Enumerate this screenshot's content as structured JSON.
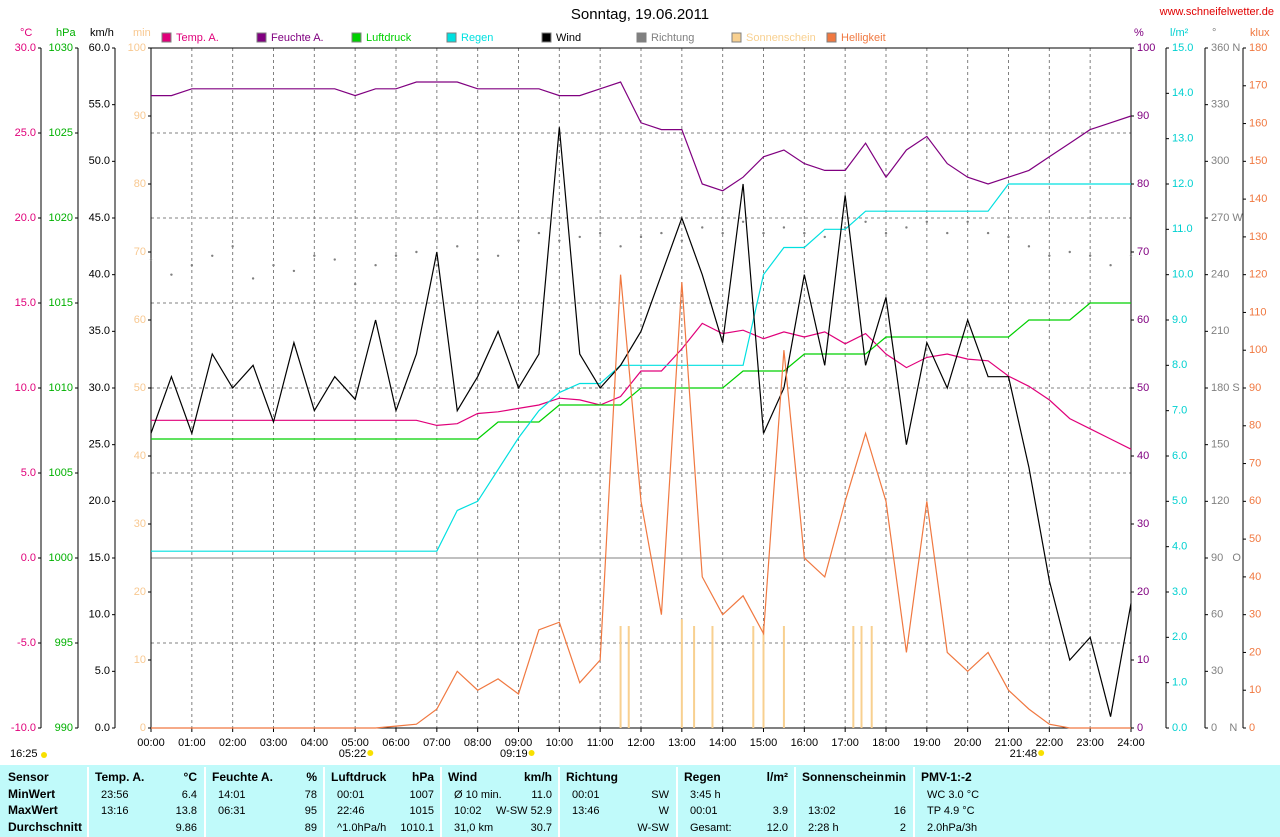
{
  "chart_data": {
    "type": "line",
    "title": "Sonntag, 19.06.2011",
    "subtitle": "www.schneifelwetter.de",
    "xlim": [
      0,
      24
    ],
    "xticks": [
      {
        "value": 0,
        "label": "00:00"
      },
      {
        "value": 1,
        "label": "01:00"
      },
      {
        "value": 2,
        "label": "02:00"
      },
      {
        "value": 3,
        "label": "03:00"
      },
      {
        "value": 4,
        "label": "04:00"
      },
      {
        "value": 5,
        "label": "05:00"
      },
      {
        "value": 6,
        "label": "06:00"
      },
      {
        "value": 7,
        "label": "07:00"
      },
      {
        "value": 8,
        "label": "08:00"
      },
      {
        "value": 9,
        "label": "09:00"
      },
      {
        "value": 10,
        "label": "10:00"
      },
      {
        "value": 11,
        "label": "11:00"
      },
      {
        "value": 12,
        "label": "12:00"
      },
      {
        "value": 13,
        "label": "13:00"
      },
      {
        "value": 14,
        "label": "14:00"
      },
      {
        "value": 15,
        "label": "15:00"
      },
      {
        "value": 16,
        "label": "16:00"
      },
      {
        "value": 17,
        "label": "17:00"
      },
      {
        "value": 18,
        "label": "18:00"
      },
      {
        "value": 19,
        "label": "19:00"
      },
      {
        "value": 20,
        "label": "20:00"
      },
      {
        "value": 21,
        "label": "21:00"
      },
      {
        "value": 22,
        "label": "22:00"
      },
      {
        "value": 23,
        "label": "23:00"
      },
      {
        "value": 24,
        "label": "24:00"
      }
    ],
    "grid": true,
    "axes": {
      "temp": {
        "label": "°C",
        "color": "#e0007a",
        "side": "left",
        "lim": [
          -10,
          30
        ],
        "ticks": [
          {
            "value": -10,
            "label": "-10.0"
          },
          {
            "value": -5,
            "label": "-5.0"
          },
          {
            "value": 0,
            "label": "0.0"
          },
          {
            "value": 5,
            "label": "5.0"
          },
          {
            "value": 10,
            "label": "10.0"
          },
          {
            "value": 15,
            "label": "15.0"
          },
          {
            "value": 20,
            "label": "20.0"
          },
          {
            "value": 25,
            "label": "25.0"
          },
          {
            "value": 30,
            "label": "30.0"
          }
        ]
      },
      "press": {
        "label": "hPa",
        "color": "#00b000",
        "side": "left",
        "lim": [
          990,
          1030
        ],
        "ticks": [
          990,
          995,
          1000,
          1005,
          1010,
          1015,
          1020,
          1025,
          1030
        ]
      },
      "wind": {
        "label": "km/h",
        "color": "#000000",
        "side": "left",
        "lim": [
          0,
          60
        ],
        "ticks": [
          {
            "value": 0,
            "label": "0.0"
          },
          {
            "value": 5,
            "label": "5.0"
          },
          {
            "value": 10,
            "label": "10.0"
          },
          {
            "value": 15,
            "label": "15.0"
          },
          {
            "value": 20,
            "label": "20.0"
          },
          {
            "value": 25,
            "label": "25.0"
          },
          {
            "value": 30,
            "label": "30.0"
          },
          {
            "value": 35,
            "label": "35.0"
          },
          {
            "value": 40,
            "label": "40.0"
          },
          {
            "value": 45,
            "label": "45.0"
          },
          {
            "value": 50,
            "label": "50.0"
          },
          {
            "value": 55,
            "label": "55.0"
          },
          {
            "value": 60,
            "label": "60.0"
          }
        ]
      },
      "min": {
        "label": "min",
        "color": "#f8c890",
        "side": "left",
        "lim": [
          0,
          100
        ],
        "ticks": [
          0,
          10,
          20,
          30,
          40,
          50,
          60,
          70,
          80,
          90,
          100
        ]
      },
      "hum": {
        "label": "%",
        "color": "#800080",
        "side": "right",
        "lim": [
          0,
          100
        ],
        "ticks": [
          0,
          10,
          20,
          30,
          40,
          50,
          60,
          70,
          80,
          90,
          100
        ]
      },
      "rain": {
        "label": "l/m²",
        "color": "#00d0d0",
        "side": "right",
        "lim": [
          0,
          15
        ],
        "ticks": [
          {
            "value": 0,
            "label": "0.0"
          },
          {
            "value": 1,
            "label": "1.0"
          },
          {
            "value": 2,
            "label": "2.0"
          },
          {
            "value": 3,
            "label": "3.0"
          },
          {
            "value": 4,
            "label": "4.0"
          },
          {
            "value": 5,
            "label": "5.0"
          },
          {
            "value": 6,
            "label": "6.0"
          },
          {
            "value": 7,
            "label": "7.0"
          },
          {
            "value": 8,
            "label": "8.0"
          },
          {
            "value": 9,
            "label": "9.0"
          },
          {
            "value": 10,
            "label": "10.0"
          },
          {
            "value": 11,
            "label": "11.0"
          },
          {
            "value": 12,
            "label": "12.0"
          },
          {
            "value": 13,
            "label": "13.0"
          },
          {
            "value": 14,
            "label": "14.0"
          },
          {
            "value": 15,
            "label": "15.0"
          }
        ]
      },
      "dir": {
        "label": "°",
        "color": "#808080",
        "side": "right",
        "lim": [
          0,
          360
        ],
        "ticks": [
          {
            "value": 0,
            "label": "0    N"
          },
          30,
          60,
          {
            "value": 90,
            "label": "90   O"
          },
          120,
          150,
          {
            "value": 180,
            "label": "180 S"
          },
          210,
          240,
          {
            "value": 270,
            "label": "270 W"
          },
          300,
          330,
          {
            "value": 360,
            "label": "360 N"
          }
        ]
      },
      "klux": {
        "label": "klux",
        "color": "#f07840",
        "side": "right",
        "lim": [
          0,
          180
        ],
        "ticks": [
          0,
          10,
          20,
          30,
          40,
          50,
          60,
          70,
          80,
          90,
          100,
          110,
          120,
          130,
          140,
          150,
          160,
          170,
          180
        ]
      }
    },
    "x": [
      0,
      0.5,
      1,
      1.5,
      2,
      2.5,
      3,
      3.5,
      4,
      4.5,
      5,
      5.5,
      6,
      6.5,
      7,
      7.5,
      8,
      8.5,
      9,
      9.5,
      10,
      10.5,
      11,
      11.5,
      12,
      12.5,
      13,
      13.5,
      14,
      14.5,
      15,
      15.5,
      16,
      16.5,
      17,
      17.5,
      18,
      18.5,
      19,
      19.5,
      20,
      20.5,
      21,
      21.5,
      22,
      22.5,
      23,
      23.5,
      24
    ],
    "series": [
      {
        "name": "Temp. A.",
        "color": "#e0007a",
        "axis": "temp",
        "mark": "line",
        "values": [
          8.1,
          8.1,
          8.1,
          8.1,
          8.1,
          8.1,
          8.1,
          8.1,
          8.1,
          8.1,
          8.1,
          8.1,
          8.1,
          8.1,
          7.8,
          7.9,
          8.5,
          8.6,
          8.8,
          9.0,
          9.4,
          9.3,
          9.0,
          9.5,
          11.0,
          11.0,
          12.3,
          13.8,
          13.2,
          13.4,
          12.9,
          13.3,
          13.0,
          13.3,
          12.6,
          13.2,
          12.0,
          11.2,
          11.8,
          12.0,
          11.7,
          11.6,
          10.7,
          10.1,
          9.3,
          8.2,
          7.6,
          7.0,
          6.4
        ]
      },
      {
        "name": "Feuchte A.",
        "color": "#800080",
        "axis": "hum",
        "mark": "line",
        "values": [
          93,
          93,
          94,
          94,
          94,
          94,
          94,
          94,
          94,
          94,
          93,
          94,
          94,
          95,
          95,
          95,
          94,
          94,
          94,
          94,
          93,
          93,
          94,
          95,
          89,
          88,
          88,
          80,
          79,
          81,
          84,
          85,
          83,
          82,
          82,
          86,
          81,
          85,
          87,
          83,
          81,
          80,
          81,
          82,
          84,
          86,
          88,
          89,
          90
        ]
      },
      {
        "name": "Luftdruck",
        "color": "#00d000",
        "axis": "press",
        "mark": "line",
        "values": [
          1007,
          1007,
          1007,
          1007,
          1007,
          1007,
          1007,
          1007,
          1007,
          1007,
          1007,
          1007,
          1007,
          1007,
          1007,
          1007,
          1007,
          1008,
          1008,
          1008,
          1009,
          1009,
          1009,
          1009,
          1010,
          1010,
          1010,
          1010,
          1010,
          1011,
          1011,
          1011,
          1012,
          1012,
          1012,
          1012,
          1013,
          1013,
          1013,
          1013,
          1013,
          1013,
          1013,
          1014,
          1014,
          1014,
          1015,
          1015,
          1015
        ]
      },
      {
        "name": "Regen",
        "color": "#00e0e0",
        "axis": "rain",
        "mark": "line",
        "values": [
          3.9,
          3.9,
          3.9,
          3.9,
          3.9,
          3.9,
          3.9,
          3.9,
          3.9,
          3.9,
          3.9,
          3.9,
          3.9,
          3.9,
          3.9,
          4.8,
          5.0,
          5.7,
          6.4,
          7.0,
          7.4,
          7.6,
          7.6,
          8.0,
          8.0,
          8.0,
          8.0,
          8.0,
          8.0,
          8.0,
          10.0,
          10.6,
          10.6,
          11.0,
          11.0,
          11.4,
          11.4,
          11.4,
          11.4,
          11.4,
          11.4,
          11.4,
          12.0,
          12.0,
          12.0,
          12.0,
          12.0,
          12.0,
          12.0
        ]
      },
      {
        "name": "Wind",
        "color": "#000000",
        "axis": "wind",
        "mark": "line",
        "values": [
          26,
          31,
          26,
          33,
          30,
          32,
          27,
          34,
          28,
          31,
          29,
          36,
          28,
          33,
          42,
          28,
          31,
          35,
          30,
          33,
          53,
          33,
          30,
          32,
          35,
          40,
          45,
          40,
          34,
          48,
          26,
          30,
          40,
          32,
          47,
          32,
          38,
          25,
          34,
          30,
          36,
          31,
          31,
          23,
          13,
          6,
          8,
          1,
          11
        ]
      },
      {
        "name": "Richtung",
        "color": "#808080",
        "axis": "dir",
        "mark": "dots",
        "values": [
          248,
          240,
          245,
          250,
          255,
          238,
          245,
          242,
          250,
          248,
          235,
          245,
          250,
          252,
          245,
          255,
          248,
          250,
          258,
          262,
          258,
          260,
          262,
          255,
          260,
          262,
          258,
          265,
          262,
          268,
          262,
          265,
          262,
          260,
          265,
          268,
          262,
          265,
          268,
          262,
          268,
          262,
          260,
          255,
          250,
          252,
          250,
          245,
          250
        ]
      },
      {
        "name": "Sonnenschein",
        "color": "#f8d090",
        "axis": "min",
        "mark": "bars",
        "x": [
          11.5,
          11.7,
          13.0,
          13.3,
          13.75,
          14.75,
          15.0,
          15.5,
          17.2,
          17.4,
          17.65
        ],
        "values": [
          15,
          15,
          16,
          15,
          15,
          15,
          15,
          15,
          15,
          15,
          15
        ]
      },
      {
        "name": "Helligkeit",
        "color": "#f07840",
        "axis": "klux",
        "mark": "line",
        "values": [
          0,
          0,
          0,
          0,
          0,
          0,
          0,
          0,
          0,
          0,
          0,
          0,
          0.5,
          1,
          5,
          15,
          10,
          13,
          9,
          26,
          28,
          12,
          18,
          120,
          60,
          30,
          118,
          40,
          30,
          35,
          25,
          100,
          45,
          40,
          60,
          78,
          60,
          20,
          60,
          20,
          15,
          20,
          10,
          5,
          1,
          0,
          0,
          0,
          0
        ]
      }
    ],
    "annotations": [
      {
        "text": "05:22",
        "x": 5.37
      },
      {
        "text": "09:19",
        "x": 9.32
      },
      {
        "text": "21:48",
        "x": 21.8
      },
      {
        "text": "16:25"
      }
    ]
  },
  "table": {
    "columns": [
      {
        "header": "Sensor",
        "rows": [
          {
            "l": "MinWert"
          },
          {
            "l": "MaxWert"
          },
          {
            "l": "Durchschnitt"
          }
        ]
      },
      {
        "header": "Temp. A.",
        "unit": "°C",
        "rows": [
          {
            "l": "23:56",
            "r": "6.4"
          },
          {
            "l": "13:16",
            "r": "13.8"
          },
          {
            "r": "9.86"
          }
        ]
      },
      {
        "header": "Feuchte A.",
        "unit": "%",
        "rows": [
          {
            "l": "14:01",
            "r": "78"
          },
          {
            "l": "06:31",
            "r": "95"
          },
          {
            "r": "89"
          }
        ]
      },
      {
        "header": "Luftdruck",
        "unit": "hPa",
        "rows": [
          {
            "l": "00:01",
            "r": "1007"
          },
          {
            "l": "22:46",
            "r": "1015"
          },
          {
            "l": "^1.0hPa/h",
            "r": "1010.1"
          }
        ]
      },
      {
        "header": "Wind",
        "unit": "km/h",
        "rows": [
          {
            "l": "Ø 10 min.",
            "r": "11.0"
          },
          {
            "l": "10:02",
            "r": "W-SW 52.9"
          },
          {
            "l": "31,0 km",
            "r": "30.7"
          }
        ]
      },
      {
        "header": "Richtung",
        "rows": [
          {
            "l": "00:01",
            "r": "SW"
          },
          {
            "l": "13:46",
            "r": "W"
          },
          {
            "r": "W-SW"
          }
        ]
      },
      {
        "header": "Regen",
        "unit": "l/m²",
        "rows": [
          {
            "l": "3:45 h"
          },
          {
            "l": "00:01",
            "r": "3.9"
          },
          {
            "l": "Gesamt:",
            "r": "12.0"
          }
        ]
      },
      {
        "header": "Sonnenschein",
        "unit": "min",
        "rows": [
          null,
          {
            "l": "13:02",
            "r": "16"
          },
          {
            "l": "2:28 h",
            "r": "2"
          }
        ]
      },
      {
        "header": "PMV-1:-2",
        "rows": [
          {
            "l": "WC 3.0 °C"
          },
          {
            "l": "TP 4.9 °C"
          },
          {
            "l": "2.0hPa/3h"
          }
        ]
      }
    ]
  }
}
